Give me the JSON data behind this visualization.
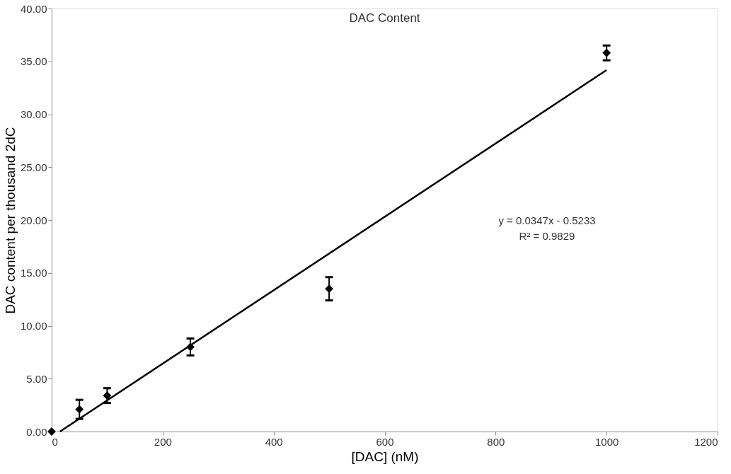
{
  "chart_data": {
    "type": "scatter",
    "title": "DAC Content",
    "xlabel": "[DAC] (nM)",
    "ylabel": "DAC content per thousand 2dC",
    "x": [
      0,
      50,
      100,
      250,
      500,
      1000
    ],
    "series": [
      {
        "color": "#000000",
        "values": [
          0,
          2.1,
          3.4,
          8.0,
          13.5,
          35.8
        ],
        "errors": [
          null,
          0.9,
          0.7,
          0.8,
          1.1,
          0.7
        ],
        "marker": "diamond"
      },
      {
        "type": "line",
        "color": "#000000",
        "x": [
          15,
          1000
        ],
        "values": [
          0.0,
          34.18
        ],
        "line_style": "solid"
      }
    ],
    "xlim": [
      0,
      1200
    ],
    "xticks": [
      0,
      200,
      400,
      600,
      800,
      1000,
      1200
    ],
    "ylim": [
      0,
      40
    ],
    "yticks": [
      {
        "value": 0,
        "label": "0.00"
      },
      {
        "value": 5,
        "label": "5.00"
      },
      {
        "value": 10,
        "label": "10.00"
      },
      {
        "value": 15,
        "label": "15.00"
      },
      {
        "value": 20,
        "label": "20.00"
      },
      {
        "value": 25,
        "label": "25.00"
      },
      {
        "value": 30,
        "label": "30.00"
      },
      {
        "value": 35,
        "label": "35.00"
      },
      {
        "value": 40,
        "label": "40.00"
      }
    ],
    "annotations": [
      "y = 0.0347x - 0.5233",
      "R² = 0.9829"
    ],
    "grid": false
  }
}
